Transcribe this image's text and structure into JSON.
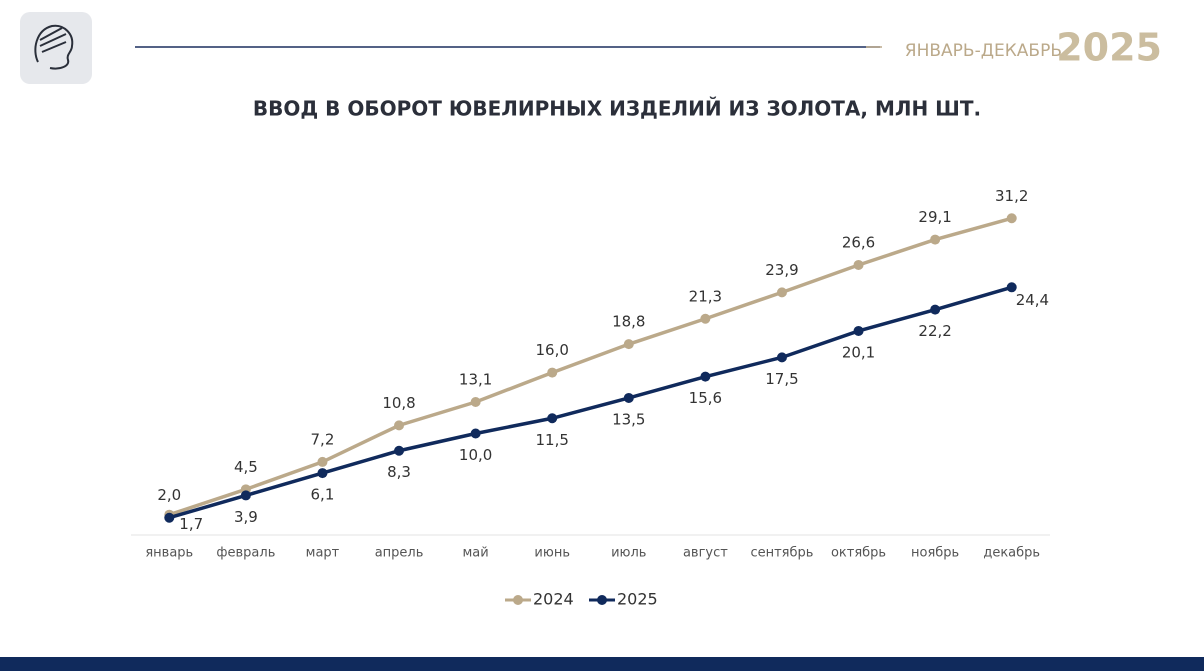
{
  "header": {
    "period": "ЯНВАРЬ-ДЕКАБРЬ",
    "year": "2025"
  },
  "chart_data": {
    "type": "line",
    "title": "ВВОД В ОБОРОТ ЮВЕЛИРНЫХ ИЗДЕЛИЙ ИЗ ЗОЛОТА, МЛН ШТ.",
    "categories": [
      "январь",
      "февраль",
      "март",
      "апрель",
      "май",
      "июнь",
      "июль",
      "август",
      "сентябрь",
      "октябрь",
      "ноябрь",
      "декабрь"
    ],
    "series": [
      {
        "name": "2024",
        "color": "#bba98a",
        "values": [
          2.0,
          4.5,
          7.2,
          10.8,
          13.1,
          16.0,
          18.8,
          21.3,
          23.9,
          26.6,
          29.1,
          31.2
        ],
        "value_labels": [
          "2,0",
          "4,5",
          "7,2",
          "10,8",
          "13,1",
          "16,0",
          "18,8",
          "21,3",
          "23,9",
          "26,6",
          "29,1",
          "31,2"
        ]
      },
      {
        "name": "2025",
        "color": "#102a5c",
        "values": [
          1.7,
          3.9,
          6.1,
          8.3,
          10.0,
          11.5,
          13.5,
          15.6,
          17.5,
          20.1,
          22.2,
          24.4
        ],
        "value_labels": [
          "1,7",
          "3,9",
          "6,1",
          "8,3",
          "10,0",
          "11,5",
          "13,5",
          "15,6",
          "17,5",
          "20,1",
          "22,2",
          "24,4"
        ]
      }
    ],
    "ylim": [
      0,
      33
    ],
    "legend": "bottom"
  }
}
